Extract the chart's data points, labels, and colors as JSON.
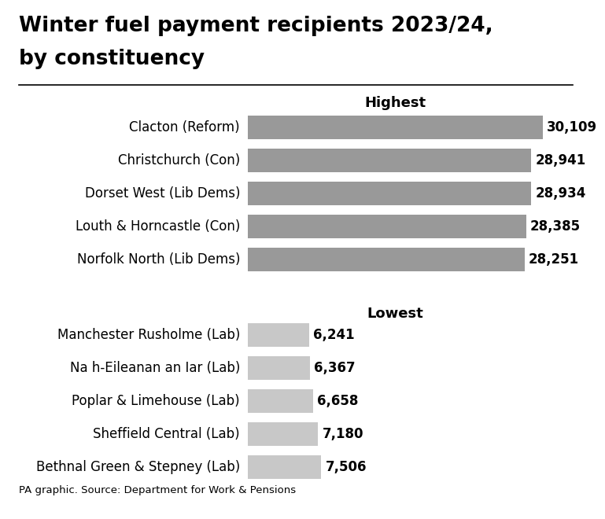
{
  "title_line1": "Winter fuel payment recipients 2023/24,",
  "title_line2": "by constituency",
  "highest_label": "Highest",
  "lowest_label": "Lowest",
  "footer": "PA graphic. Source: Department for Work & Pensions",
  "highest_categories": [
    "Clacton (Reform)",
    "Christchurch (Con)",
    "Dorset West (Lib Dems)",
    "Louth & Horncastle (Con)",
    "Norfolk North (Lib Dems)"
  ],
  "highest_values": [
    30109,
    28941,
    28934,
    28385,
    28251
  ],
  "highest_labels": [
    "30,109",
    "28,941",
    "28,934",
    "28,385",
    "28,251"
  ],
  "lowest_categories": [
    "Manchester Rusholme (Lab)",
    "Na h-Eileanan an Iar (Lab)",
    "Poplar & Limehouse (Lab)",
    "Sheffield Central (Lab)",
    "Bethnal Green & Stepney (Lab)"
  ],
  "lowest_values": [
    6241,
    6367,
    6658,
    7180,
    7506
  ],
  "lowest_labels": [
    "6,241",
    "6,367",
    "6,658",
    "7,180",
    "7,506"
  ],
  "highest_bar_color": "#999999",
  "lowest_bar_color": "#c8c8c8",
  "background_color": "#ffffff",
  "title_fontsize": 19,
  "label_fontsize": 12,
  "value_fontsize": 12,
  "section_fontsize": 13,
  "footer_fontsize": 9.5
}
